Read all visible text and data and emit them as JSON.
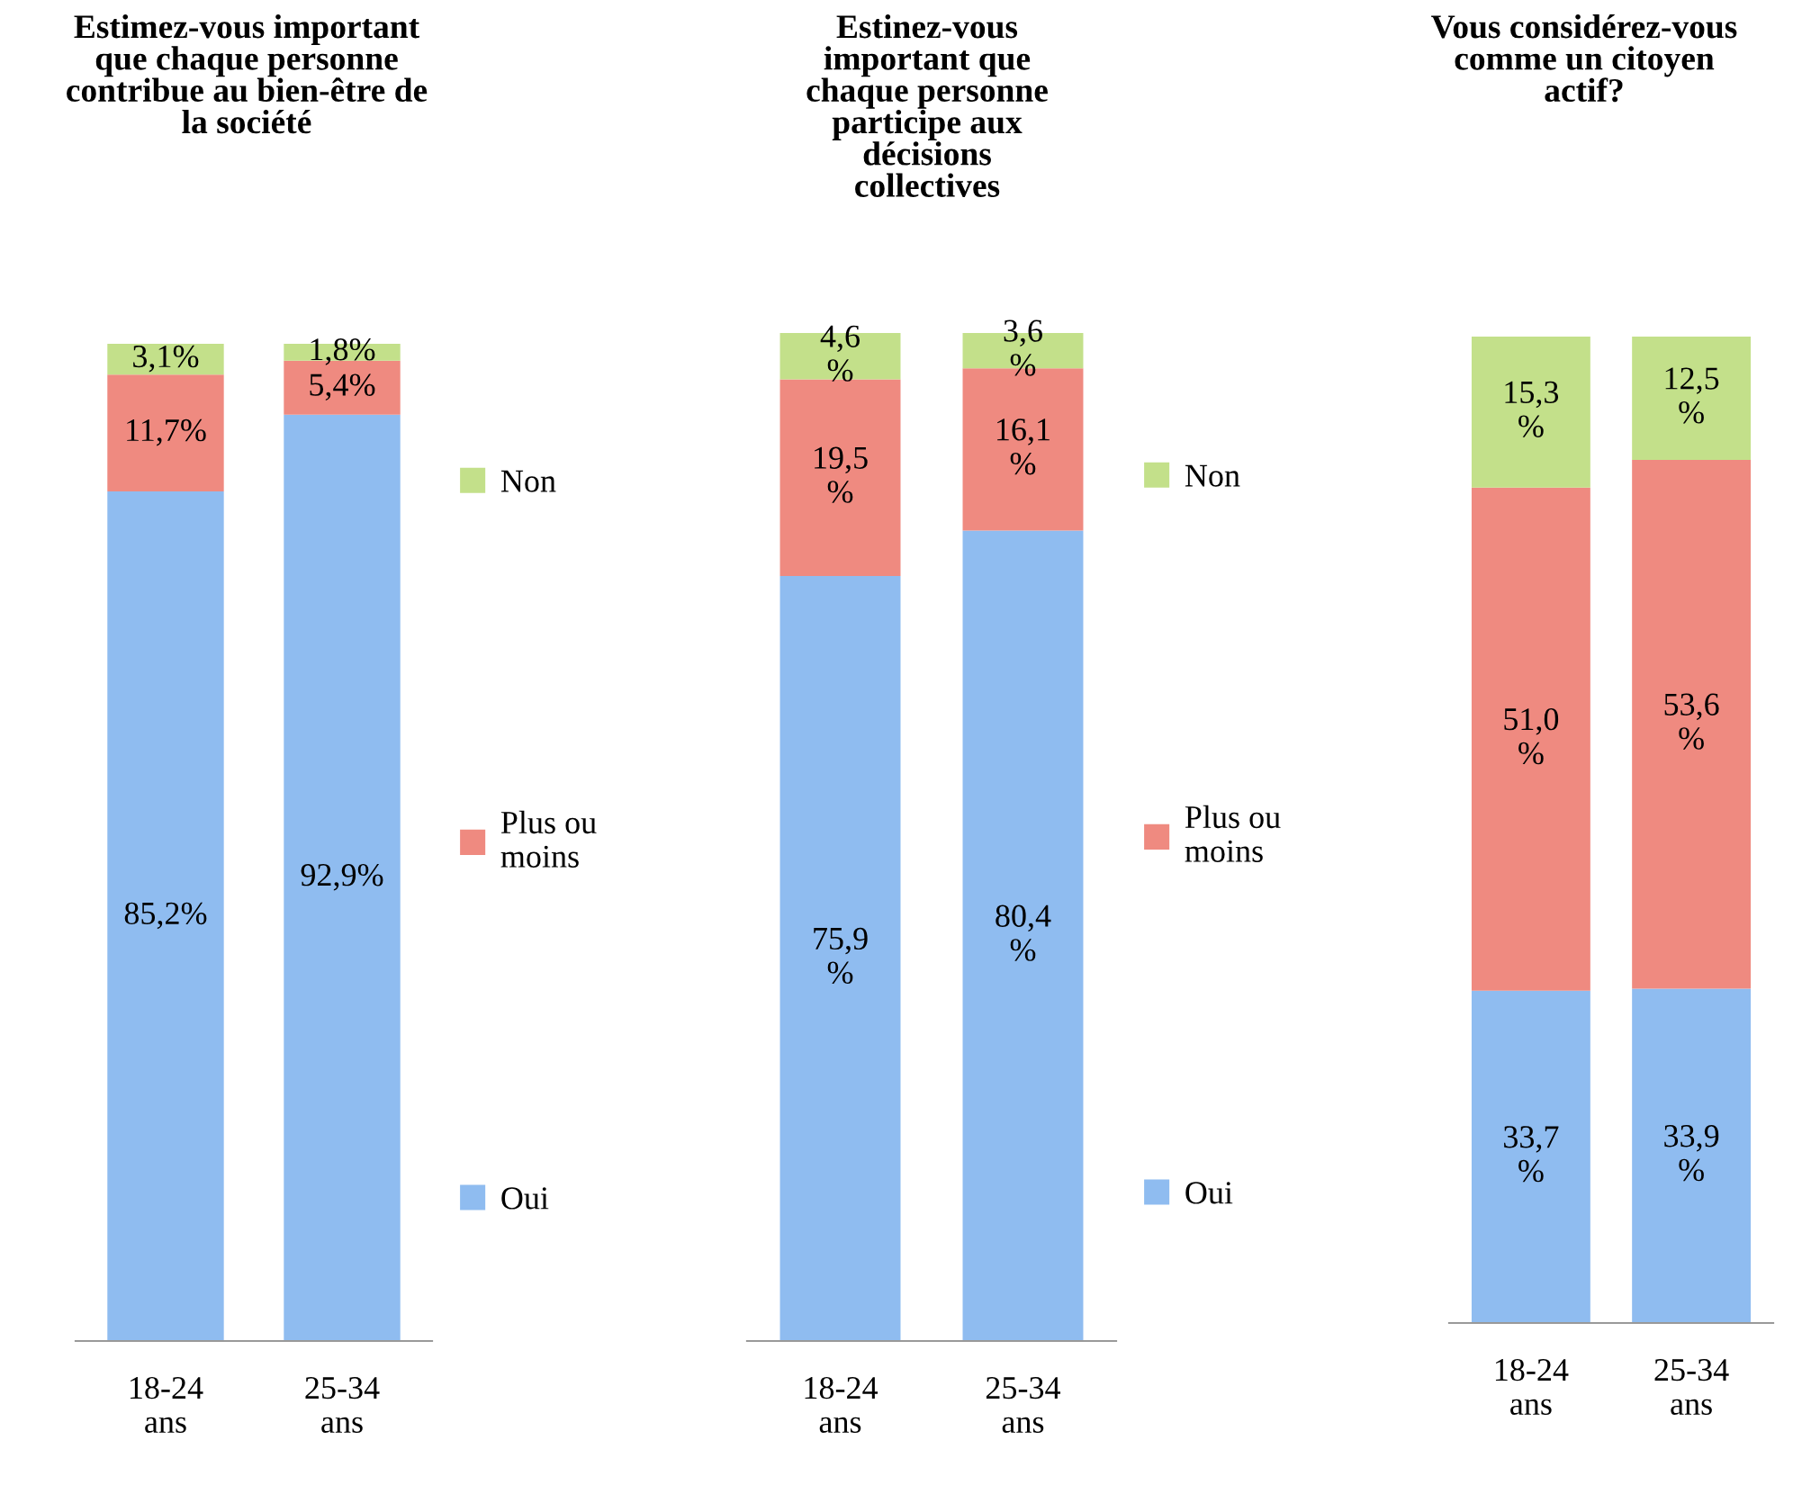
{
  "chart_data": [
    {
      "type": "bar",
      "stacked": true,
      "title": "Estimez-vous important\nque chaque personne\ncontribue au bien-être de\nla société",
      "categories": [
        "18-24\nans",
        "25-34\nans"
      ],
      "ylim": [
        0,
        100
      ],
      "tick_labels": "x",
      "legend": "right",
      "grid": false,
      "series": [
        {
          "name": "Oui",
          "color": "#8fbcf0",
          "values": [
            85.2,
            92.9
          ],
          "value_labels": [
            "85,2%",
            "92,9%"
          ]
        },
        {
          "name": "Plus ou\nmoins",
          "color": "#ef8a80",
          "values": [
            11.7,
            5.4
          ],
          "value_labels": [
            "11,7%",
            "5,4%"
          ]
        },
        {
          "name": "Non",
          "color": "#c3e08a",
          "values": [
            3.1,
            1.8
          ],
          "value_labels": [
            "3,1%",
            "1,8%"
          ]
        }
      ]
    },
    {
      "type": "bar",
      "stacked": true,
      "title": "Estinez-vous\nimportant que\nchaque personne\nparticipe aux\ndécisions\ncollectives",
      "categories": [
        "18-24\nans",
        "25-34\nans"
      ],
      "ylim": [
        0,
        100
      ],
      "tick_labels": "x",
      "legend": "right",
      "grid": false,
      "series": [
        {
          "name": "Oui",
          "color": "#8fbcf0",
          "values": [
            75.9,
            80.4
          ],
          "value_labels": [
            "75,9\n%",
            "80,4\n%"
          ]
        },
        {
          "name": "Plus ou\nmoins",
          "color": "#ef8a80",
          "values": [
            19.5,
            16.1
          ],
          "value_labels": [
            "19,5\n%",
            "16,1\n%"
          ]
        },
        {
          "name": "Non",
          "color": "#c3e08a",
          "values": [
            4.6,
            3.6
          ],
          "value_labels": [
            "4,6\n%",
            "3,6\n%"
          ]
        }
      ]
    },
    {
      "type": "bar",
      "stacked": true,
      "title": "Vous considérez-vous\ncomme un citoyen\nactif?",
      "categories": [
        "18-24\nans",
        "25-34\nans"
      ],
      "ylim": [
        0,
        100
      ],
      "tick_labels": "x",
      "grid": false,
      "series": [
        {
          "color": "#8fbcf0",
          "values": [
            33.7,
            33.9
          ],
          "value_labels": [
            "33,7\n%",
            "33,9\n%"
          ]
        },
        {
          "color": "#ef8a80",
          "values": [
            51.0,
            53.6
          ],
          "value_labels": [
            "51,0\n%",
            "53,6\n%"
          ]
        },
        {
          "color": "#c3e08a",
          "values": [
            15.3,
            12.5
          ],
          "value_labels": [
            "15,3\n%",
            "12,5\n%"
          ]
        }
      ]
    }
  ]
}
